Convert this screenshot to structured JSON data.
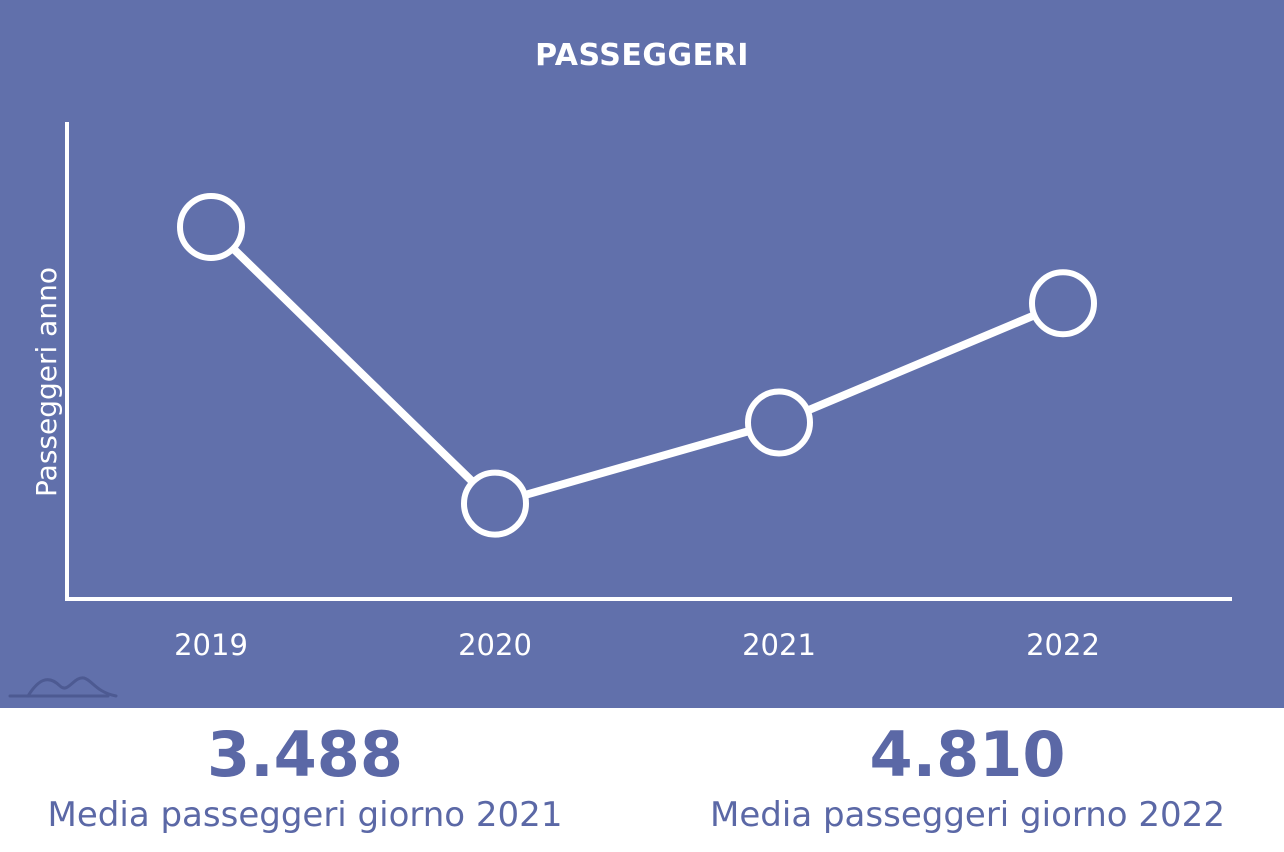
{
  "chart_data": {
    "type": "line",
    "title": "PASSEGGERI",
    "ylabel": "Passeggeri anno",
    "xlabel": "",
    "categories": [
      "2019",
      "2020",
      "2021",
      "2022"
    ],
    "values": [
      0.78,
      0.2,
      0.37,
      0.62
    ],
    "ylim": [
      0,
      1
    ],
    "grid": false,
    "legend": "none",
    "colors": {
      "background": "#6170ab",
      "line": "#ffffff",
      "marker_fill": "#6170ab"
    }
  },
  "stats": [
    {
      "value": "3.488",
      "caption": "Media passeggeri giorno 2021"
    },
    {
      "value": "4.810",
      "caption": "Media passeggeri giorno 2022"
    }
  ],
  "logo": {
    "icon": "mountain-logo-icon",
    "color": "#4d5a92"
  },
  "text_color": "#5b68a6"
}
